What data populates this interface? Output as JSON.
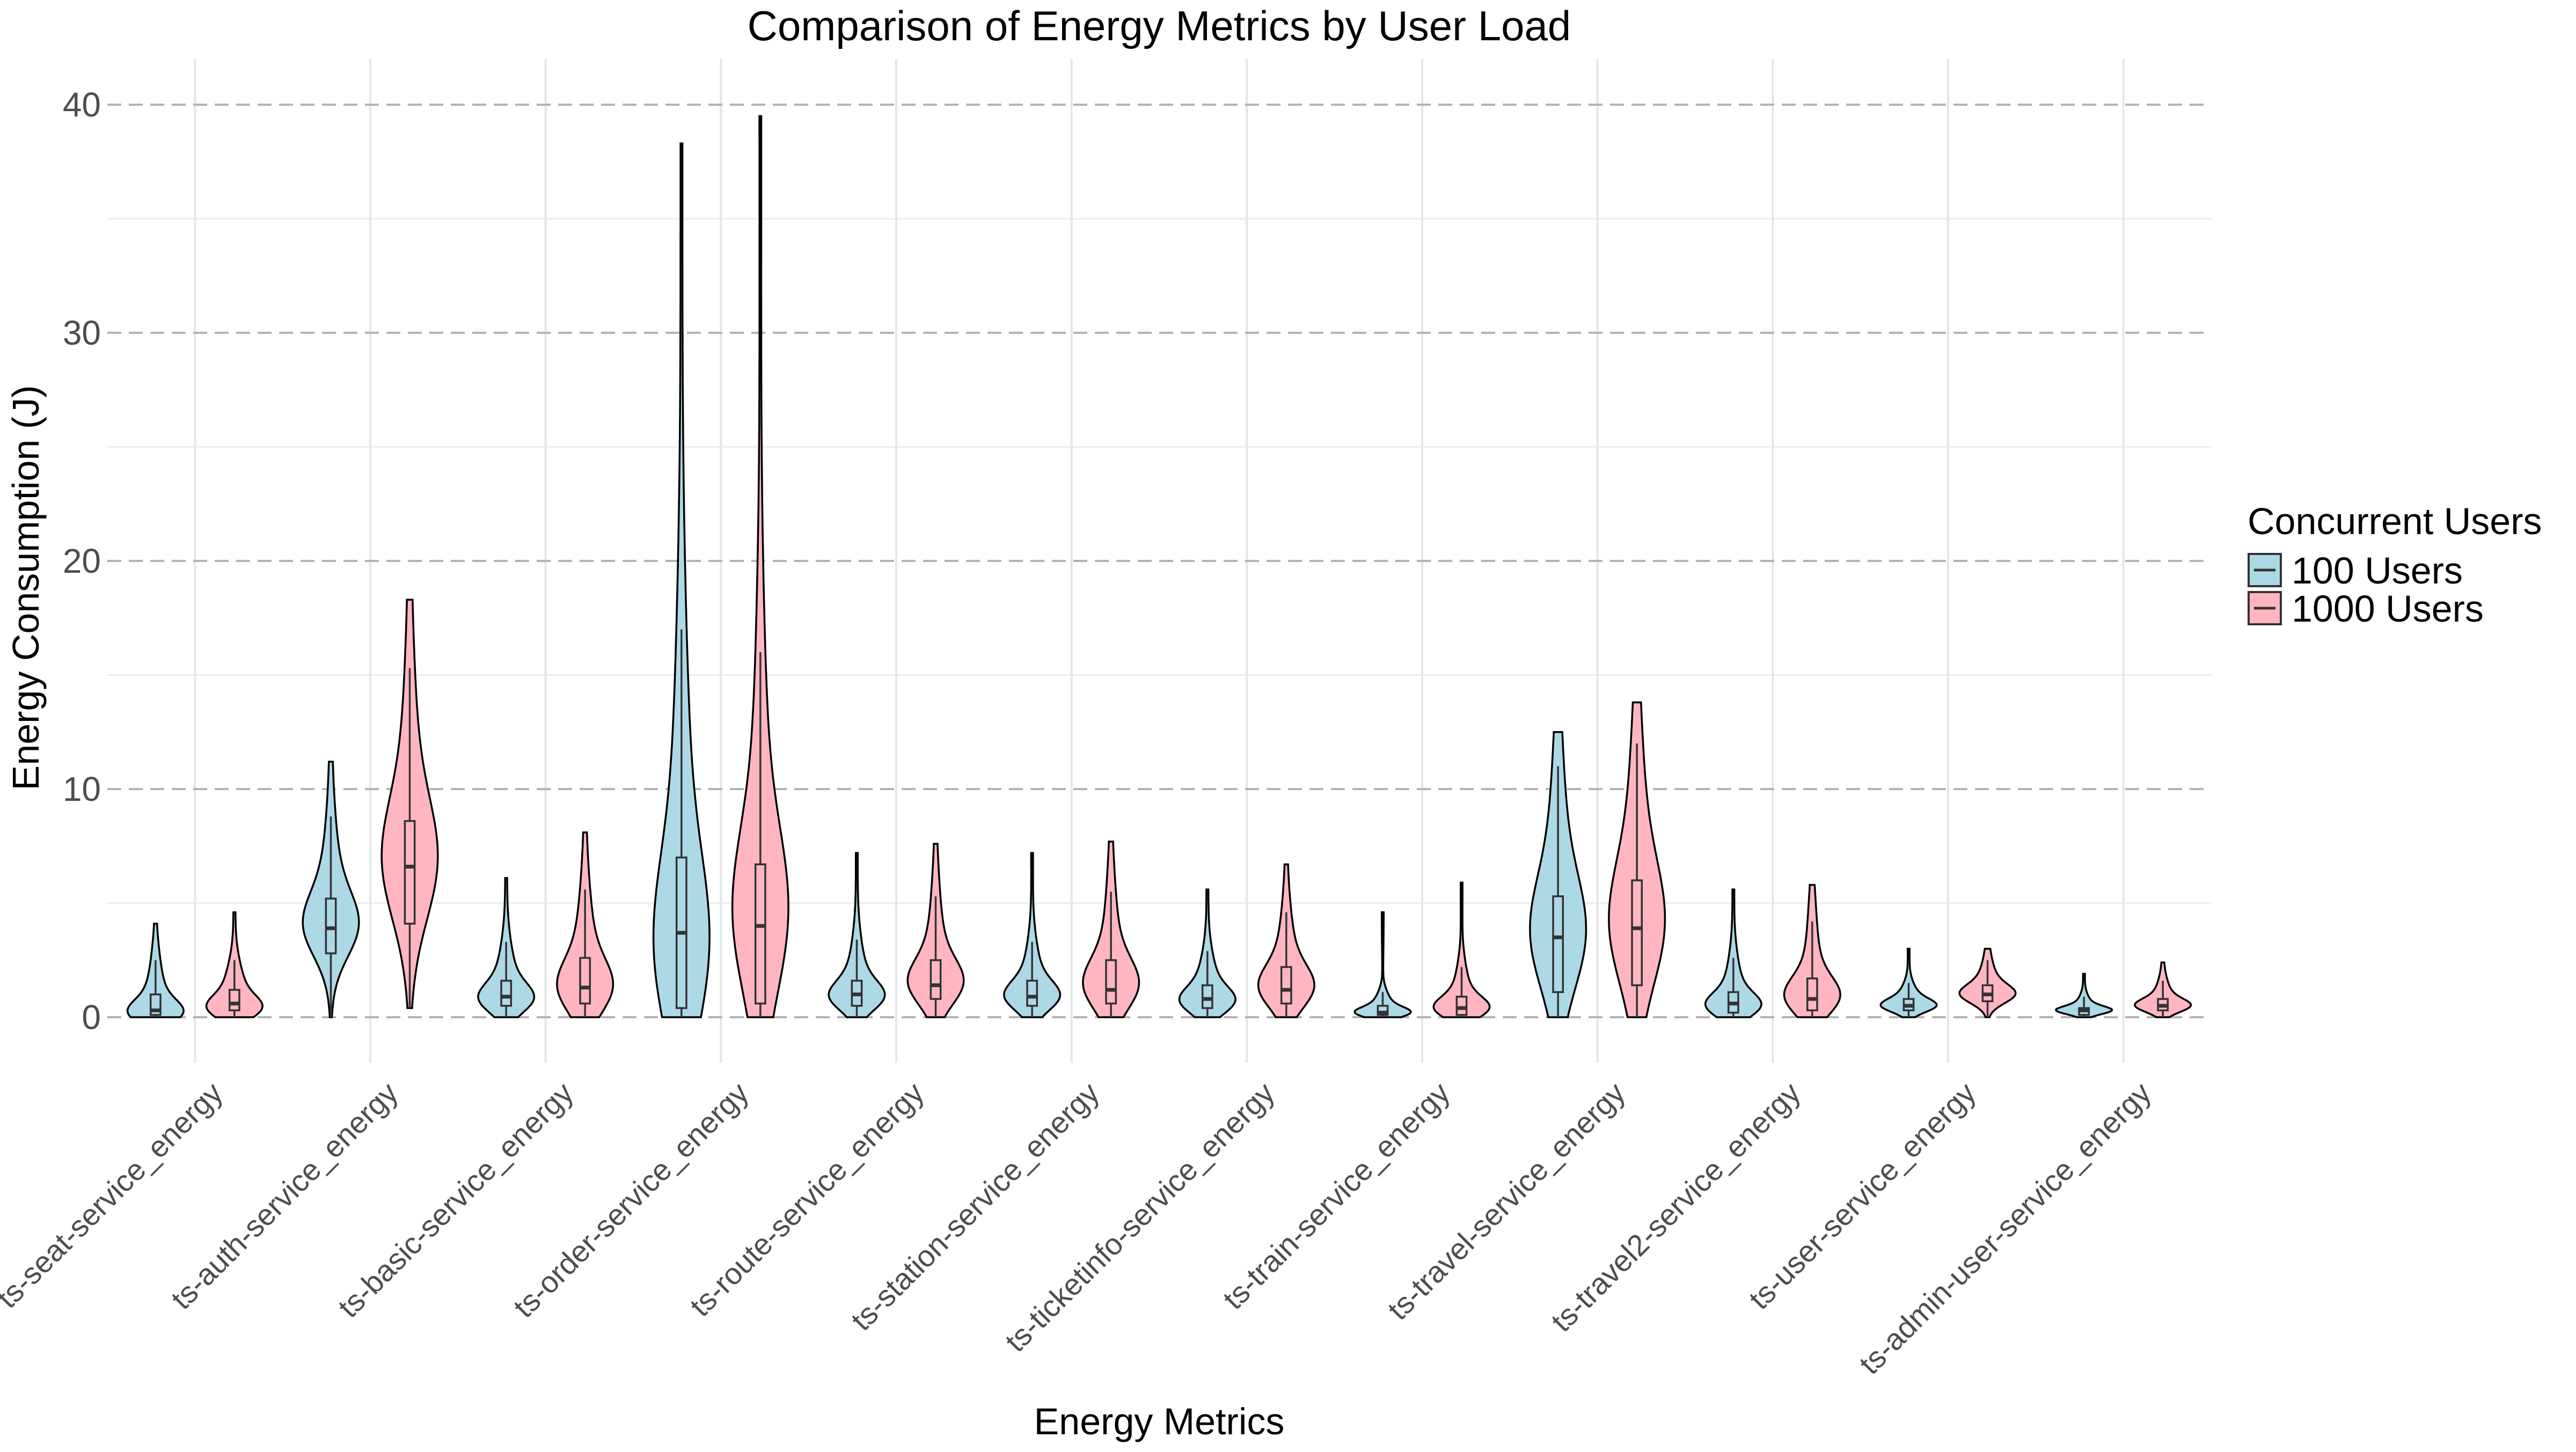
{
  "chart_data": {
    "type": "violin",
    "title": "Comparison of Energy Metrics by User Load",
    "xlabel": "Energy Metrics",
    "ylabel": "Energy Consumption (J)",
    "ylim": [
      -2,
      42
    ],
    "yticks": [
      0,
      10,
      20,
      30,
      40
    ],
    "grid": true,
    "legend": {
      "title": "Concurrent Users",
      "position": "right",
      "entries": [
        "100 Users",
        "1000 Users"
      ]
    },
    "colors": {
      "100 Users": "#add8e6",
      "1000 Users": "#ffb6c1"
    },
    "categories": [
      "ts-seat-service_energy",
      "ts-auth-service_energy",
      "ts-basic-service_energy",
      "ts-order-service_energy",
      "ts-route-service_energy",
      "ts-station-service_energy",
      "ts-ticketinfo-service_energy",
      "ts-train-service_energy",
      "ts-travel-service_energy",
      "ts-travel2-service_energy",
      "ts-user-service_energy",
      "ts-admin-user-service_energy"
    ],
    "series": [
      {
        "name": "100 Users",
        "stats": [
          {
            "min": 0.0,
            "q1": 0.1,
            "median": 0.3,
            "q3": 1.0,
            "max": 4.1,
            "whisker_low": 0.0,
            "whisker_high": 2.5,
            "mode": 0.2
          },
          {
            "min": 0.0,
            "q1": 2.8,
            "median": 3.9,
            "q3": 5.2,
            "max": 11.2,
            "whisker_low": 0.0,
            "whisker_high": 8.8,
            "mode": 4.0
          },
          {
            "min": 0.0,
            "q1": 0.5,
            "median": 0.9,
            "q3": 1.6,
            "max": 6.1,
            "whisker_low": 0.0,
            "whisker_high": 3.3,
            "mode": 0.8
          },
          {
            "min": 0.0,
            "q1": 0.4,
            "median": 3.7,
            "q3": 7.0,
            "max": 38.3,
            "whisker_low": 0.0,
            "whisker_high": 17.0,
            "mode": 3.0
          },
          {
            "min": 0.0,
            "q1": 0.5,
            "median": 1.0,
            "q3": 1.6,
            "max": 7.2,
            "whisker_low": 0.0,
            "whisker_high": 3.4,
            "mode": 0.9
          },
          {
            "min": 0.0,
            "q1": 0.5,
            "median": 0.9,
            "q3": 1.6,
            "max": 7.2,
            "whisker_low": 0.0,
            "whisker_high": 3.3,
            "mode": 0.9
          },
          {
            "min": 0.0,
            "q1": 0.4,
            "median": 0.8,
            "q3": 1.4,
            "max": 5.6,
            "whisker_low": 0.0,
            "whisker_high": 2.9,
            "mode": 0.7
          },
          {
            "min": 0.0,
            "q1": 0.1,
            "median": 0.2,
            "q3": 0.5,
            "max": 4.6,
            "whisker_low": 0.0,
            "whisker_high": 1.1,
            "mode": 0.2
          },
          {
            "min": 0.0,
            "q1": 1.1,
            "median": 3.5,
            "q3": 5.3,
            "max": 12.5,
            "whisker_low": 0.0,
            "whisker_high": 11.0,
            "mode": 3.6
          },
          {
            "min": 0.0,
            "q1": 0.2,
            "median": 0.6,
            "q3": 1.1,
            "max": 5.6,
            "whisker_low": 0.0,
            "whisker_high": 2.6,
            "mode": 0.5
          },
          {
            "min": 0.0,
            "q1": 0.3,
            "median": 0.5,
            "q3": 0.8,
            "max": 3.0,
            "whisker_low": 0.0,
            "whisker_high": 1.5,
            "mode": 0.5
          },
          {
            "min": 0.0,
            "q1": 0.1,
            "median": 0.3,
            "q3": 0.4,
            "max": 1.9,
            "whisker_low": 0.0,
            "whisker_high": 0.9,
            "mode": 0.3
          }
        ]
      },
      {
        "name": "1000 Users",
        "stats": [
          {
            "min": 0.0,
            "q1": 0.3,
            "median": 0.6,
            "q3": 1.2,
            "max": 4.6,
            "whisker_low": 0.0,
            "whisker_high": 2.5,
            "mode": 0.4
          },
          {
            "min": 0.4,
            "q1": 4.1,
            "median": 6.6,
            "q3": 8.6,
            "max": 18.3,
            "whisker_low": 0.4,
            "whisker_high": 15.3,
            "mode": 6.8
          },
          {
            "min": 0.0,
            "q1": 0.6,
            "median": 1.3,
            "q3": 2.6,
            "max": 8.1,
            "whisker_low": 0.0,
            "whisker_high": 5.6,
            "mode": 1.3
          },
          {
            "min": 0.0,
            "q1": 0.6,
            "median": 4.0,
            "q3": 6.7,
            "max": 39.5,
            "whisker_low": 0.0,
            "whisker_high": 16.0,
            "mode": 4.5
          },
          {
            "min": 0.0,
            "q1": 0.8,
            "median": 1.4,
            "q3": 2.5,
            "max": 7.6,
            "whisker_low": 0.0,
            "whisker_high": 5.3,
            "mode": 1.5
          },
          {
            "min": 0.0,
            "q1": 0.6,
            "median": 1.2,
            "q3": 2.5,
            "max": 7.7,
            "whisker_low": 0.0,
            "whisker_high": 5.5,
            "mode": 1.4
          },
          {
            "min": 0.0,
            "q1": 0.6,
            "median": 1.2,
            "q3": 2.2,
            "max": 6.7,
            "whisker_low": 0.0,
            "whisker_high": 4.6,
            "mode": 1.3
          },
          {
            "min": 0.0,
            "q1": 0.1,
            "median": 0.4,
            "q3": 0.9,
            "max": 5.9,
            "whisker_low": 0.0,
            "whisker_high": 2.2,
            "mode": 0.4
          },
          {
            "min": 0.0,
            "q1": 1.4,
            "median": 3.9,
            "q3": 6.0,
            "max": 13.8,
            "whisker_low": 0.0,
            "whisker_high": 12.0,
            "mode": 4.0
          },
          {
            "min": 0.0,
            "q1": 0.3,
            "median": 0.8,
            "q3": 1.7,
            "max": 5.8,
            "whisker_low": 0.0,
            "whisker_high": 4.2,
            "mode": 0.9
          },
          {
            "min": 0.0,
            "q1": 0.7,
            "median": 1.0,
            "q3": 1.4,
            "max": 3.0,
            "whisker_low": 0.0,
            "whisker_high": 2.5,
            "mode": 1.0
          },
          {
            "min": 0.0,
            "q1": 0.3,
            "median": 0.5,
            "q3": 0.8,
            "max": 2.4,
            "whisker_low": 0.0,
            "whisker_high": 1.6,
            "mode": 0.5
          }
        ]
      }
    ]
  }
}
